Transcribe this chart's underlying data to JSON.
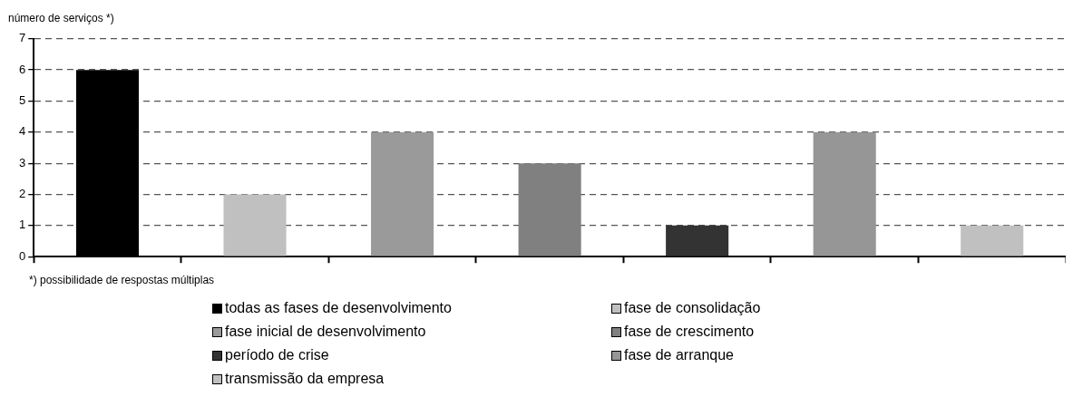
{
  "chart_data": {
    "type": "bar",
    "ylabel": "número de serviços *)",
    "annotations": [
      "*) possibilidade de respostas múltiplas"
    ],
    "categories": [
      null,
      null,
      null,
      null,
      null,
      null,
      null
    ],
    "series": [
      {
        "name": "todas as fases de desenvolvimento",
        "color": "#000000",
        "values": [
          6,
          null,
          null,
          null,
          null,
          null,
          null
        ]
      },
      {
        "name": "fase de consolidação",
        "color": "#c0c0c0",
        "values": [
          null,
          2,
          null,
          null,
          null,
          null,
          null
        ]
      },
      {
        "name": "fase inicial de desenvolvimento",
        "color": "#9a9a9a",
        "values": [
          null,
          null,
          4,
          null,
          null,
          null,
          null
        ]
      },
      {
        "name": "fase de crescimento",
        "color": "#808080",
        "values": [
          null,
          null,
          null,
          3,
          null,
          null,
          null
        ]
      },
      {
        "name": "período de crise",
        "color": "#333333",
        "values": [
          null,
          null,
          null,
          null,
          1,
          null,
          null
        ]
      },
      {
        "name": "fase de arranque",
        "color": "#969696",
        "values": [
          null,
          null,
          null,
          null,
          null,
          4,
          null
        ]
      },
      {
        "name": "transmissão da empresa",
        "color": "#c0c0c0",
        "values": [
          null,
          null,
          null,
          null,
          null,
          null,
          1
        ]
      }
    ],
    "ylim": [
      0,
      7
    ],
    "yticks": [
      0,
      1,
      2,
      3,
      4,
      5,
      6,
      7
    ],
    "grid": "y",
    "legend": "bottom"
  }
}
